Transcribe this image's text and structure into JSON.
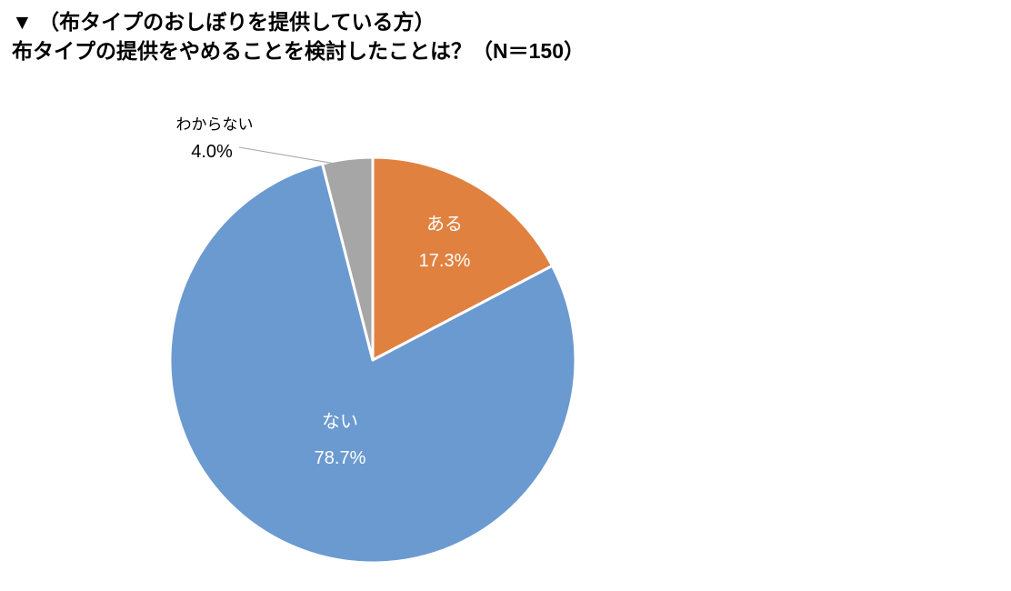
{
  "title": {
    "line1": "▼ （布タイプのおしぼりを提供している方）",
    "line2": "布タイプの提供をやめることを検討したことは？（N＝150）"
  },
  "chart_data": {
    "type": "pie",
    "title": "布タイプの提供をやめることを検討したことは？",
    "sample_size_label": "N＝150",
    "categories": [
      "ある",
      "ない",
      "わからない"
    ],
    "values": [
      17.3,
      78.7,
      4.0
    ],
    "unit": "%",
    "colors": [
      "#E08140",
      "#6B9AD0",
      "#A6A6A6"
    ],
    "slice_border_color": "#FFFFFF",
    "start_angle_deg": 0,
    "direction": "clockwise",
    "label_placement": [
      "inside",
      "inside",
      "outside"
    ],
    "inside_label_color": "#FFFFFF",
    "outside_label_color": "#000000",
    "leader_line_color": "#A6A6A6",
    "legend": "none",
    "grid": false
  }
}
